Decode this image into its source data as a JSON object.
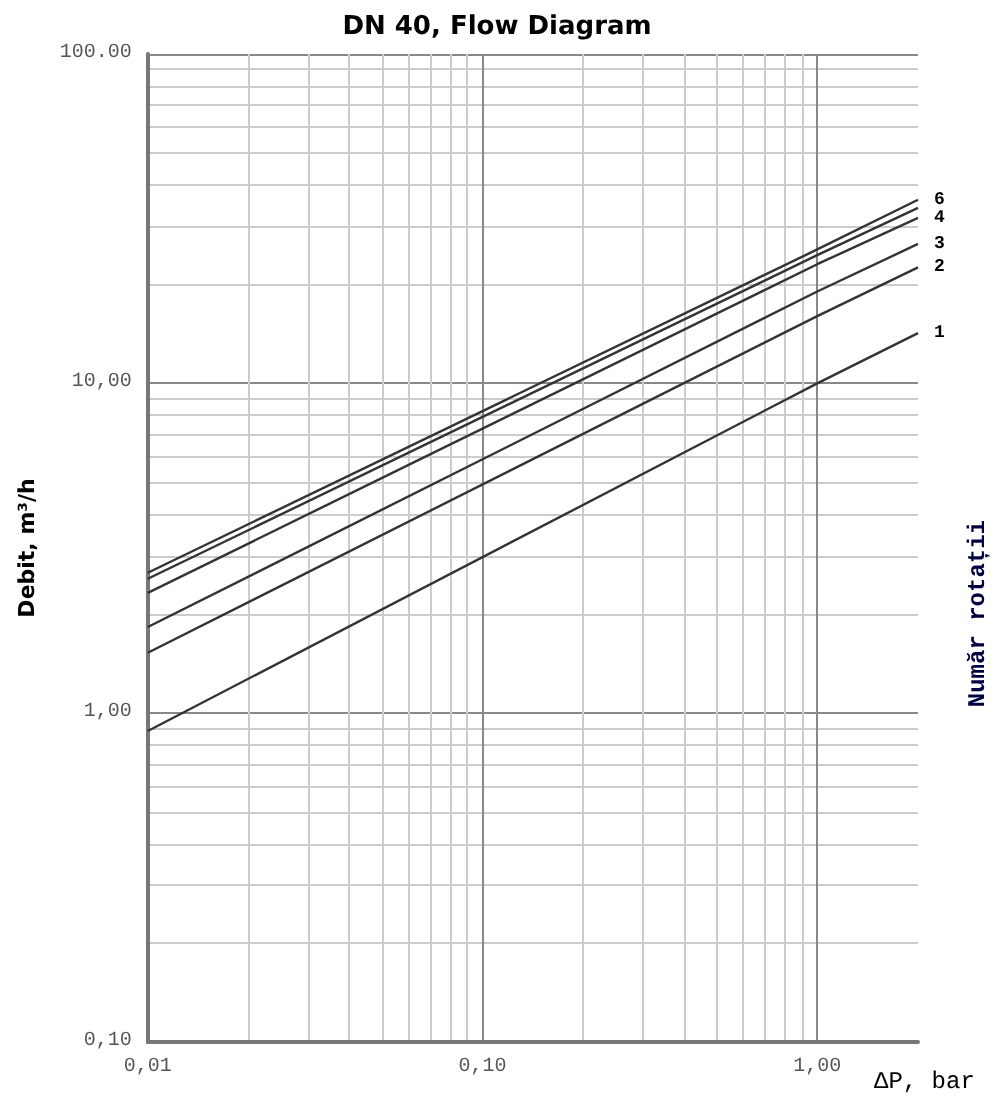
{
  "chart_data": {
    "type": "line",
    "title": "DN 40, Flow Diagram",
    "xlabel": "ΔP, bar",
    "ylabel": "Debit, m³/h",
    "annotations": [
      "Număr rotații"
    ],
    "log": "xy",
    "grid": true,
    "legend": false,
    "marker": "none",
    "line_style": "solid",
    "x": [
      0.01,
      1,
      2
    ],
    "xlim": [
      0.01,
      2
    ],
    "ylim": [
      0.1,
      100
    ],
    "xticks": [
      {
        "value": 0.01,
        "label": "0,01"
      },
      {
        "value": 0.02,
        "label": null
      },
      {
        "value": 0.03,
        "label": null
      },
      {
        "value": 0.04,
        "label": null
      },
      {
        "value": 0.05,
        "label": null
      },
      {
        "value": 0.06,
        "label": null
      },
      {
        "value": 0.07,
        "label": null
      },
      {
        "value": 0.08,
        "label": null
      },
      {
        "value": 0.09,
        "label": null
      },
      {
        "value": 0.1,
        "label": "0,10"
      },
      {
        "value": 0.2,
        "label": null
      },
      {
        "value": 0.3,
        "label": null
      },
      {
        "value": 0.4,
        "label": null
      },
      {
        "value": 0.5,
        "label": null
      },
      {
        "value": 0.6,
        "label": null
      },
      {
        "value": 0.7,
        "label": null
      },
      {
        "value": 0.8,
        "label": null
      },
      {
        "value": 0.9,
        "label": null
      },
      {
        "value": 1,
        "label": "1,00"
      }
    ],
    "yticks": [
      {
        "value": 0.1,
        "label": "0,10"
      },
      {
        "value": 0.2,
        "label": null
      },
      {
        "value": 0.3,
        "label": null
      },
      {
        "value": 0.4,
        "label": null
      },
      {
        "value": 0.5,
        "label": null
      },
      {
        "value": 0.6,
        "label": null
      },
      {
        "value": 0.7,
        "label": null
      },
      {
        "value": 0.8,
        "label": null
      },
      {
        "value": 0.9,
        "label": null
      },
      {
        "value": 1,
        "label": "1,00"
      },
      {
        "value": 2,
        "label": null
      },
      {
        "value": 3,
        "label": null
      },
      {
        "value": 4,
        "label": null
      },
      {
        "value": 5,
        "label": null
      },
      {
        "value": 6,
        "label": null
      },
      {
        "value": 7,
        "label": null
      },
      {
        "value": 8,
        "label": null
      },
      {
        "value": 9,
        "label": null
      },
      {
        "value": 10,
        "label": "10,00"
      },
      {
        "value": 20,
        "label": null
      },
      {
        "value": 30,
        "label": null
      },
      {
        "value": 40,
        "label": null
      },
      {
        "value": 50,
        "label": null
      },
      {
        "value": 60,
        "label": null
      },
      {
        "value": 70,
        "label": null
      },
      {
        "value": 80,
        "label": null
      },
      {
        "value": 90,
        "label": null
      },
      {
        "value": 100,
        "label": "100.00"
      }
    ],
    "series": [
      {
        "name": "1",
        "color": "#333333",
        "values": [
          0.88,
          10,
          14.2
        ]
      },
      {
        "name": "2",
        "color": "#333333",
        "values": [
          1.52,
          16,
          22.5
        ]
      },
      {
        "name": "3",
        "color": "#333333",
        "values": [
          1.82,
          19,
          26.5
        ]
      },
      {
        "name": "4",
        "color": "#333333",
        "values": [
          2.31,
          23,
          31.8
        ]
      },
      {
        "color": "#333333",
        "values": [
          2.55,
          24.5,
          34.1
        ]
      },
      {
        "name": "6",
        "color": "#333333",
        "values": [
          2.66,
          25.5,
          36.1
        ]
      }
    ]
  }
}
